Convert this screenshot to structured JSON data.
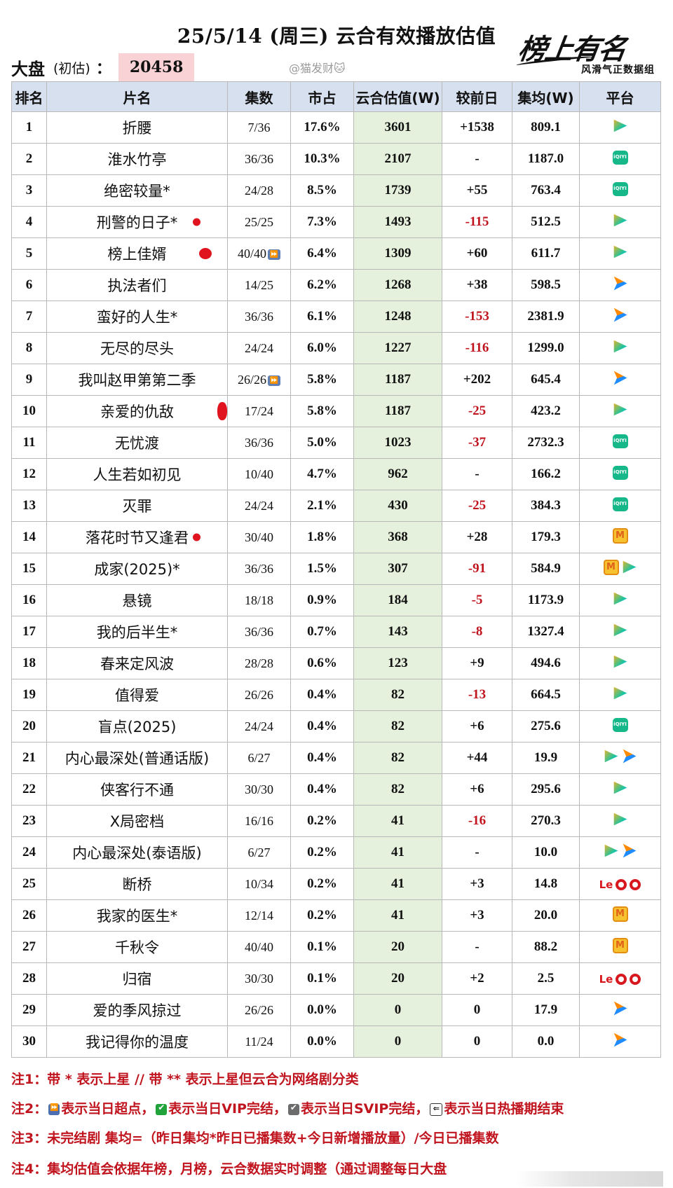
{
  "header": {
    "title": "25/5/14 (周三) 云合有效播放估值",
    "brand_main": "榜上有名",
    "brand_sub": "风滑气正数据组",
    "watermark": "@猫发财🐱"
  },
  "summary": {
    "label": "大盘",
    "sublabel": "(初估)",
    "colon": "：",
    "value": "20458"
  },
  "columns": [
    "排名",
    "片名",
    "集数",
    "市占",
    "云合估值(W)",
    "较前日",
    "集均(W)",
    "平台"
  ],
  "rows": [
    {
      "rank": "1",
      "title": "折腰",
      "ep": "7/36",
      "share": "17.6%",
      "value": "3601",
      "change": "+1538",
      "neg": false,
      "avg": "809.1",
      "plat": [
        "tencent"
      ]
    },
    {
      "rank": "2",
      "title": "淮水竹亭",
      "ep": "36/36",
      "share": "10.3%",
      "value": "2107",
      "change": "-",
      "neg": false,
      "avg": "1187.0",
      "plat": [
        "iqiyi"
      ]
    },
    {
      "rank": "3",
      "title": "绝密较量*",
      "ep": "24/28",
      "share": "8.5%",
      "value": "1739",
      "change": "+55",
      "neg": false,
      "avg": "763.4",
      "plat": [
        "iqiyi"
      ]
    },
    {
      "rank": "4",
      "title": "刑警的日子*",
      "ep": "25/25",
      "share": "7.3%",
      "value": "1493",
      "change": "-115",
      "neg": true,
      "avg": "512.5",
      "plat": [
        "tencent"
      ],
      "dot": "small"
    },
    {
      "rank": "5",
      "title": "榜上佳婿",
      "ep": "40/40",
      "ff": true,
      "share": "6.4%",
      "value": "1309",
      "change": "+60",
      "neg": false,
      "avg": "611.7",
      "plat": [
        "tencent"
      ],
      "dot": "big"
    },
    {
      "rank": "6",
      "title": "执法者们",
      "ep": "14/25",
      "share": "6.2%",
      "value": "1268",
      "change": "+38",
      "neg": false,
      "avg": "598.5",
      "plat": [
        "youku"
      ]
    },
    {
      "rank": "7",
      "title": "蛮好的人生*",
      "ep": "36/36",
      "share": "6.1%",
      "value": "1248",
      "change": "-153",
      "neg": true,
      "avg": "2381.9",
      "plat": [
        "youku"
      ]
    },
    {
      "rank": "8",
      "title": "无尽的尽头",
      "ep": "24/24",
      "share": "6.0%",
      "value": "1227",
      "change": "-116",
      "neg": true,
      "avg": "1299.0",
      "plat": [
        "tencent"
      ]
    },
    {
      "rank": "9",
      "title": "我叫赵甲第第二季",
      "ep": "26/26",
      "ff": true,
      "share": "5.8%",
      "value": "1187",
      "change": "+202",
      "neg": false,
      "avg": "645.4",
      "plat": [
        "youku"
      ]
    },
    {
      "rank": "10",
      "title": "亲爱的仇敌",
      "ep": "17/24",
      "share": "5.8%",
      "value": "1187",
      "change": "-25",
      "neg": true,
      "avg": "423.2",
      "plat": [
        "tencent"
      ],
      "dot": "tall"
    },
    {
      "rank": "11",
      "title": "无忧渡",
      "ep": "36/36",
      "share": "5.0%",
      "value": "1023",
      "change": "-37",
      "neg": true,
      "avg": "2732.3",
      "plat": [
        "iqiyi"
      ]
    },
    {
      "rank": "12",
      "title": "人生若如初见",
      "ep": "10/40",
      "share": "4.7%",
      "value": "962",
      "change": "-",
      "neg": false,
      "avg": "166.2",
      "plat": [
        "iqiyi"
      ]
    },
    {
      "rank": "13",
      "title": "灭罪",
      "ep": "24/24",
      "share": "2.1%",
      "value": "430",
      "change": "-25",
      "neg": true,
      "avg": "384.3",
      "plat": [
        "iqiyi"
      ]
    },
    {
      "rank": "14",
      "title": "落花时节又逢君",
      "ep": "30/40",
      "share": "1.8%",
      "value": "368",
      "change": "+28",
      "neg": false,
      "avg": "179.3",
      "plat": [
        "mango"
      ],
      "dot": "small"
    },
    {
      "rank": "15",
      "title": "成家(2025)*",
      "ep": "36/36",
      "share": "1.5%",
      "value": "307",
      "change": "-91",
      "neg": true,
      "avg": "584.9",
      "plat": [
        "mango",
        "tencent"
      ]
    },
    {
      "rank": "16",
      "title": "悬镜",
      "ep": "18/18",
      "share": "0.9%",
      "value": "184",
      "change": "-5",
      "neg": true,
      "avg": "1173.9",
      "plat": [
        "tencent"
      ]
    },
    {
      "rank": "17",
      "title": "我的后半生*",
      "ep": "36/36",
      "share": "0.7%",
      "value": "143",
      "change": "-8",
      "neg": true,
      "avg": "1327.4",
      "plat": [
        "tencent"
      ]
    },
    {
      "rank": "18",
      "title": "春来定风波",
      "ep": "28/28",
      "share": "0.6%",
      "value": "123",
      "change": "+9",
      "neg": false,
      "avg": "494.6",
      "plat": [
        "tencent"
      ]
    },
    {
      "rank": "19",
      "title": "值得爱",
      "ep": "26/26",
      "share": "0.4%",
      "value": "82",
      "change": "-13",
      "neg": true,
      "avg": "664.5",
      "plat": [
        "tencent"
      ]
    },
    {
      "rank": "20",
      "title": "盲点(2025)",
      "ep": "24/24",
      "share": "0.4%",
      "value": "82",
      "change": "+6",
      "neg": false,
      "avg": "275.6",
      "plat": [
        "iqiyi"
      ]
    },
    {
      "rank": "21",
      "title": "内心最深处(普通话版)",
      "ep": "6/27",
      "share": "0.4%",
      "value": "82",
      "change": "+44",
      "neg": false,
      "avg": "19.9",
      "plat": [
        "tencent",
        "youku"
      ]
    },
    {
      "rank": "22",
      "title": "侠客行不通",
      "ep": "30/30",
      "share": "0.4%",
      "value": "82",
      "change": "+6",
      "neg": false,
      "avg": "295.6",
      "plat": [
        "tencent"
      ]
    },
    {
      "rank": "23",
      "title": "X局密档",
      "ep": "16/16",
      "share": "0.2%",
      "value": "41",
      "change": "-16",
      "neg": true,
      "avg": "270.3",
      "plat": [
        "tencent"
      ]
    },
    {
      "rank": "24",
      "title": "内心最深处(泰语版)",
      "ep": "6/27",
      "share": "0.2%",
      "value": "41",
      "change": "-",
      "neg": false,
      "avg": "10.0",
      "plat": [
        "tencent",
        "youku"
      ]
    },
    {
      "rank": "25",
      "title": "断桥",
      "ep": "10/34",
      "share": "0.2%",
      "value": "41",
      "change": "+3",
      "neg": false,
      "avg": "14.8",
      "plat": [
        "le",
        "red",
        "red"
      ]
    },
    {
      "rank": "26",
      "title": "我家的医生*",
      "ep": "12/14",
      "share": "0.2%",
      "value": "41",
      "change": "+3",
      "neg": false,
      "avg": "20.0",
      "plat": [
        "mango"
      ]
    },
    {
      "rank": "27",
      "title": "千秋令",
      "ep": "40/40",
      "share": "0.1%",
      "value": "20",
      "change": "-",
      "neg": false,
      "avg": "88.2",
      "plat": [
        "mango"
      ]
    },
    {
      "rank": "28",
      "title": "归宿",
      "ep": "30/30",
      "share": "0.1%",
      "value": "20",
      "change": "+2",
      "neg": false,
      "avg": "2.5",
      "plat": [
        "le",
        "red",
        "red"
      ]
    },
    {
      "rank": "29",
      "title": "爱的季风掠过",
      "ep": "26/26",
      "share": "0.0%",
      "value": "0",
      "change": "0",
      "neg": false,
      "avg": "17.9",
      "plat": [
        "youku"
      ]
    },
    {
      "rank": "30",
      "title": "我记得你的温度",
      "ep": "11/24",
      "share": "0.0%",
      "value": "0",
      "change": "0",
      "neg": false,
      "avg": "0.0",
      "plat": [
        "youku"
      ]
    }
  ],
  "platform_icons": {
    "tencent": "tencent-video-icon",
    "iqiyi": "iqiyi-icon",
    "youku": "youku-icon",
    "mango": "mango-tv-icon",
    "le": "le-video-icon",
    "red": "red-circle-icon"
  },
  "colors": {
    "header_bg": "#d6e0ee",
    "value_bg": "#e5f1dc",
    "negative": "#c0141e",
    "summary_bg": "#f8d2d4"
  },
  "notes": {
    "n1": "注1：带 * 表示上星 // 带 ** 表示上星但云合为网络剧分类",
    "n2_prefix": "注2：",
    "n2_a": "表示当日超点，",
    "n2_b": "表示当日VIP完结，",
    "n2_c": "表示当日SVIP完结，",
    "n2_d": "表示当日热播期结束",
    "n3": "注3：未完结剧 集均=（昨日集均*昨日已播集数+今日新增播放量）/今日已播集数",
    "n4": "注4：集均估值会依据年榜，月榜，云合数据实时调整（通过调整每日大盘"
  }
}
